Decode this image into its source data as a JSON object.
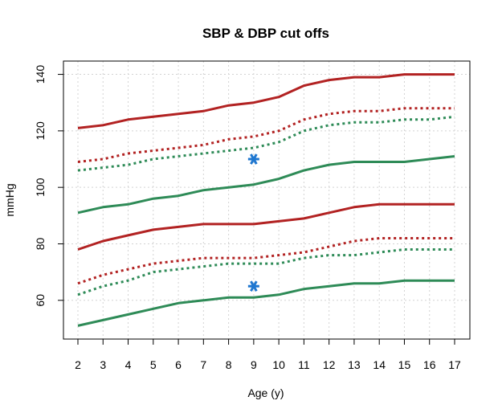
{
  "chart_data": {
    "type": "line",
    "title": "SBP & DBP cut offs",
    "xlabel": "Age (y)",
    "ylabel": "mmHg",
    "x": [
      2,
      3,
      4,
      5,
      6,
      7,
      8,
      9,
      10,
      11,
      12,
      13,
      14,
      15,
      16,
      17
    ],
    "xlim": [
      2,
      17
    ],
    "ylim": [
      47,
      144
    ],
    "yticks": [
      60,
      80,
      100,
      120,
      140
    ],
    "grid": true,
    "series": [
      {
        "group": "sbp-red-solid",
        "color": "#b22222",
        "style": "solid",
        "values": [
          121,
          122,
          124,
          125,
          126,
          127,
          129,
          130,
          132,
          136,
          138,
          139,
          139,
          140,
          140,
          140
        ]
      },
      {
        "group": "sbp-red-dotted",
        "color": "#b22222",
        "style": "dotted",
        "values": [
          109,
          110,
          112,
          113,
          114,
          115,
          117,
          118,
          120,
          124,
          126,
          127,
          127,
          128,
          128,
          128
        ]
      },
      {
        "group": "sbp-green-dotted",
        "color": "#2e8b57",
        "style": "dotted",
        "values": [
          106,
          107,
          108,
          110,
          111,
          112,
          113,
          114,
          116,
          120,
          122,
          123,
          123,
          124,
          124,
          125
        ]
      },
      {
        "group": "sbp-green-solid",
        "color": "#2e8b57",
        "style": "solid",
        "values": [
          91,
          93,
          94,
          96,
          97,
          99,
          100,
          101,
          103,
          106,
          108,
          109,
          109,
          109,
          110,
          111
        ]
      },
      {
        "group": "dbp-red-solid",
        "color": "#b22222",
        "style": "solid",
        "values": [
          78,
          81,
          83,
          85,
          86,
          87,
          87,
          87,
          88,
          89,
          91,
          93,
          94,
          94,
          94,
          94
        ]
      },
      {
        "group": "dbp-red-dotted",
        "color": "#b22222",
        "style": "dotted",
        "values": [
          66,
          69,
          71,
          73,
          74,
          75,
          75,
          75,
          76,
          77,
          79,
          81,
          82,
          82,
          82,
          82
        ]
      },
      {
        "group": "dbp-green-dotted",
        "color": "#2e8b57",
        "style": "dotted",
        "values": [
          62,
          65,
          67,
          70,
          71,
          72,
          73,
          73,
          73,
          75,
          76,
          76,
          77,
          78,
          78,
          78
        ]
      },
      {
        "group": "dbp-green-solid",
        "color": "#2e8b57",
        "style": "solid",
        "values": [
          51,
          53,
          55,
          57,
          59,
          60,
          61,
          61,
          62,
          64,
          65,
          66,
          66,
          67,
          67,
          67
        ]
      }
    ],
    "markers": [
      {
        "name": "sbp-measurement",
        "x": 9,
        "y": 110,
        "color": "#1f77d0",
        "symbol": "asterisk"
      },
      {
        "name": "dbp-measurement",
        "x": 9,
        "y": 65,
        "color": "#1f77d0",
        "symbol": "asterisk"
      }
    ]
  }
}
